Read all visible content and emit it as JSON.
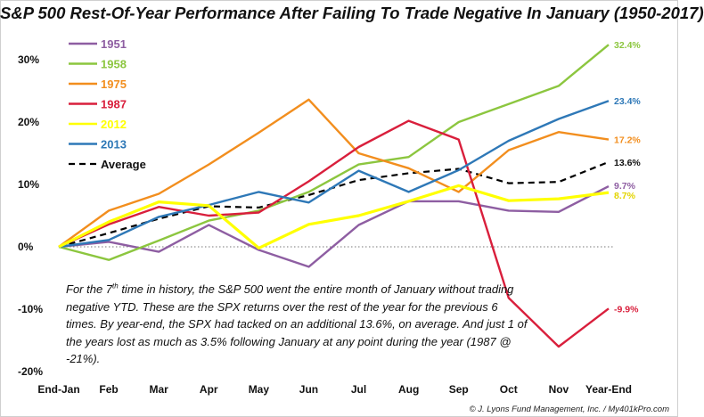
{
  "title": "S&P 500 Rest-Of-Year Performance After Failing To Trade Negative In January (1950-2017)",
  "chart_data": {
    "type": "line",
    "categories": [
      "End-Jan",
      "Feb",
      "Mar",
      "Apr",
      "May",
      "Jun",
      "Jul",
      "Aug",
      "Sep",
      "Oct",
      "Nov",
      "Year-End"
    ],
    "ylim": [
      -20,
      35
    ],
    "yticks": [
      -20,
      -10,
      0,
      10,
      20,
      30
    ],
    "ytick_labels": [
      "-20%",
      "-10%",
      "0%",
      "10%",
      "20%",
      "30%"
    ],
    "grid": false,
    "zero_line": "dotted",
    "legend_position": "top-left",
    "series": [
      {
        "name": "1951",
        "color": "#8e5ea2",
        "dash": false,
        "values": [
          0,
          0.8,
          -0.8,
          3.5,
          -0.5,
          -3.2,
          3.5,
          7.3,
          7.3,
          5.8,
          5.6,
          9.7
        ],
        "end_label": "9.7%"
      },
      {
        "name": "1958",
        "color": "#8cc63f",
        "dash": false,
        "values": [
          0,
          -2.1,
          1.0,
          4.2,
          5.8,
          8.8,
          13.2,
          14.4,
          20.0,
          22.9,
          25.8,
          32.4
        ],
        "end_label": "32.4%"
      },
      {
        "name": "1975",
        "color": "#f28e1e",
        "dash": false,
        "values": [
          0,
          5.8,
          8.5,
          13.2,
          18.3,
          23.6,
          15.0,
          12.6,
          8.8,
          15.5,
          18.4,
          17.2
        ],
        "end_label": "17.2%"
      },
      {
        "name": "1987",
        "color": "#d91f3c",
        "dash": false,
        "values": [
          0,
          3.6,
          6.4,
          5.0,
          5.5,
          10.5,
          16.0,
          20.2,
          17.2,
          -8.2,
          -16.0,
          -9.9
        ],
        "end_label": "-9.9%"
      },
      {
        "name": "2012",
        "color": "#ffff00",
        "dash": false,
        "values": [
          0,
          4.0,
          7.2,
          6.6,
          -0.2,
          3.6,
          5.0,
          7.3,
          9.8,
          7.4,
          7.7,
          8.7
        ],
        "end_label": "8.7%"
      },
      {
        "name": "2013",
        "color": "#2e78b7",
        "dash": false,
        "values": [
          0,
          1.1,
          4.8,
          6.7,
          8.8,
          7.1,
          12.2,
          8.8,
          12.3,
          17.0,
          20.5,
          23.4
        ],
        "end_label": "23.4%"
      },
      {
        "name": "Average",
        "color": "#000000",
        "dash": true,
        "values": [
          0,
          2.2,
          4.5,
          6.5,
          6.3,
          8.3,
          10.7,
          11.8,
          12.5,
          10.2,
          10.4,
          13.6
        ],
        "end_label": "13.6%"
      }
    ]
  },
  "note": {
    "line1_pre": "For the 7",
    "line1_sup": "th",
    "line1_post": " time in history, the S&P 500 went the entire month of",
    "rest": "January without trading negative YTD. These are the SPX returns over the rest of the year for the previous 6 times. By year-end, the SPX had tacked on an additional 13.6%, on average. And just 1 of the years lost as much as 3.5% following January at any point during the year (1987 @ -21%)."
  },
  "credit": "© J. Lyons Fund Management, Inc. / My401kPro.com"
}
